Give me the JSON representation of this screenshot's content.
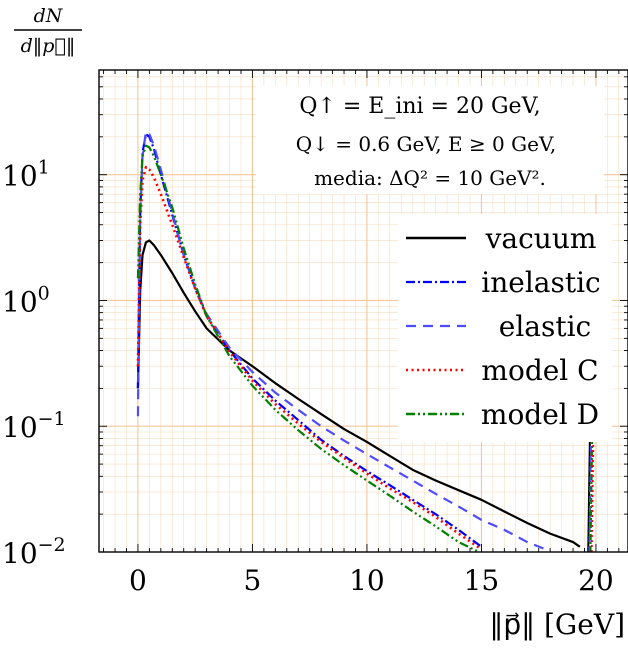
{
  "chart_data": {
    "type": "line",
    "ylabel_num": "dN",
    "ylabel_den": "d‖p⃗‖",
    "xlabel": "‖p⃗‖ [GeV]",
    "xlim": [
      -1.7,
      21.4
    ],
    "ylim": [
      0.01,
      68
    ],
    "yscale": "log",
    "grid": true,
    "x_ticks": [
      {
        "value": 0,
        "label": "0"
      },
      {
        "value": 5,
        "label": "5"
      },
      {
        "value": 10,
        "label": "10"
      },
      {
        "value": 15,
        "label": "15"
      },
      {
        "value": 20,
        "label": "20"
      }
    ],
    "y_ticks": [
      {
        "value": 0.01,
        "base": "10",
        "exp": "−2"
      },
      {
        "value": 0.1,
        "base": "10",
        "exp": "−1"
      },
      {
        "value": 1,
        "base": "10",
        "exp": "0"
      },
      {
        "value": 10,
        "base": "10",
        "exp": "1"
      }
    ],
    "annotation": [
      "Q↑ = E_ini = 20 GeV,",
      "Q↓ = 0.6 GeV, E ≥ 0 GeV,",
      "media: ΔQ² = 10 GeV²."
    ],
    "legend_position": "right",
    "series": [
      {
        "name": "vacuum",
        "color": "#000000",
        "dash": "solid",
        "x": [
          0,
          0.1,
          0.2,
          0.35,
          0.5,
          0.7,
          1.0,
          1.5,
          2.0,
          2.5,
          3.0,
          4.0,
          5.0,
          6.0,
          7.0,
          8.0,
          9.0,
          10.0,
          11.0,
          12.0,
          13.0,
          14.0,
          15.0,
          16.0,
          17.0,
          18.0,
          19.0,
          19.3
        ],
        "y": [
          0.2,
          1.2,
          2.3,
          2.9,
          3.0,
          2.75,
          2.3,
          1.65,
          1.15,
          0.82,
          0.6,
          0.4,
          0.3,
          0.22,
          0.165,
          0.125,
          0.095,
          0.075,
          0.058,
          0.045,
          0.037,
          0.031,
          0.026,
          0.021,
          0.017,
          0.014,
          0.012,
          0.011
        ]
      },
      {
        "name": "inelastic",
        "color": "#0000ff",
        "dash": "dashdot",
        "x": [
          0,
          0.1,
          0.2,
          0.35,
          0.5,
          0.7,
          1.0,
          1.5,
          2.0,
          2.5,
          3.0,
          4.0,
          5.0,
          6.0,
          7.0,
          8.0,
          9.0,
          10.0,
          11.0,
          12.0,
          13.0,
          14.0,
          15.0
        ],
        "y": [
          0.2,
          5,
          15,
          21,
          20,
          16,
          10,
          4.8,
          2.3,
          1.25,
          0.75,
          0.4,
          0.24,
          0.16,
          0.112,
          0.078,
          0.058,
          0.044,
          0.034,
          0.026,
          0.02,
          0.015,
          0.011
        ]
      },
      {
        "name": "elastic",
        "color": "#4d4dff",
        "dash": "dashed",
        "x": [
          0,
          0.1,
          0.2,
          0.35,
          0.5,
          0.7,
          1.0,
          1.5,
          2.0,
          2.5,
          3.0,
          4.0,
          5.0,
          6.0,
          7.0,
          8.0,
          9.0,
          10.0,
          11.0,
          12.0,
          13.0,
          14.0,
          15.0,
          16.0,
          17.0,
          17.8
        ],
        "y": [
          0.12,
          4.5,
          14,
          22,
          21,
          17,
          11,
          5,
          2.3,
          1.25,
          0.78,
          0.42,
          0.27,
          0.185,
          0.135,
          0.1,
          0.077,
          0.06,
          0.047,
          0.037,
          0.029,
          0.023,
          0.018,
          0.015,
          0.012,
          0.0105
        ]
      },
      {
        "name": "model C",
        "color": "#ff0000",
        "dash": "dotted",
        "x": [
          0,
          0.1,
          0.2,
          0.35,
          0.5,
          0.7,
          1.0,
          1.5,
          2.0,
          2.5,
          3.0,
          4.0,
          5.0,
          6.0,
          7.0,
          8.0,
          9.0,
          10.0,
          11.0,
          12.0,
          13.0,
          14.0,
          15.0
        ],
        "y": [
          0.3,
          4,
          9,
          11.5,
          11,
          9.5,
          7,
          4,
          2.2,
          1.25,
          0.75,
          0.39,
          0.23,
          0.15,
          0.105,
          0.075,
          0.056,
          0.042,
          0.032,
          0.025,
          0.019,
          0.014,
          0.0105
        ]
      },
      {
        "name": "model D",
        "color": "#008000",
        "dash": "dashdotdot",
        "x": [
          0,
          0.1,
          0.2,
          0.35,
          0.5,
          0.7,
          1.0,
          1.5,
          2.0,
          2.5,
          3.0,
          4.0,
          5.0,
          6.0,
          7.0,
          8.0,
          9.0,
          10.0,
          11.0,
          12.0,
          13.0,
          14.0,
          14.8
        ],
        "y": [
          1.5,
          7,
          14,
          17,
          16.5,
          14,
          10,
          5.5,
          2.6,
          1.35,
          0.75,
          0.36,
          0.21,
          0.135,
          0.093,
          0.066,
          0.049,
          0.037,
          0.028,
          0.021,
          0.016,
          0.012,
          0.0102
        ]
      }
    ]
  }
}
